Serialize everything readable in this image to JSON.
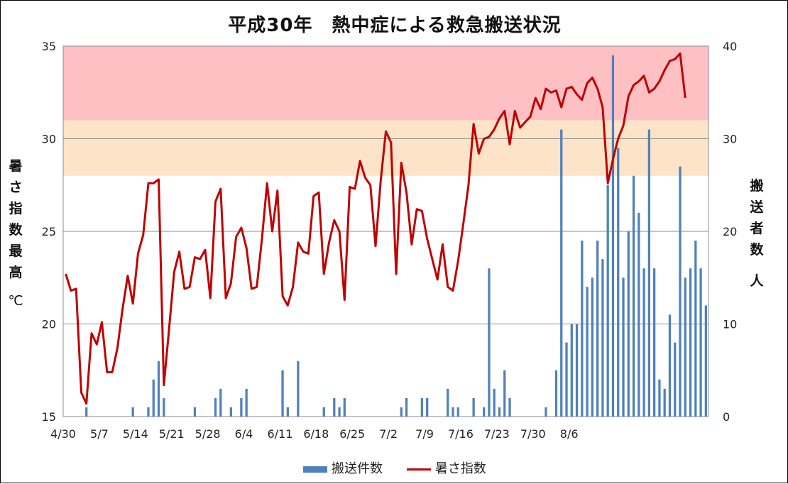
{
  "chart_data": {
    "type": "bar+line",
    "title": "平成30年　熱中症による救急搬送状況",
    "y_left_label": "暑さ指数最高",
    "y_left_unit": "℃",
    "y_right_label": "搬送者数",
    "y_right_unit": "人",
    "y_left_range": [
      15,
      35
    ],
    "y_left_ticks": [
      "15",
      "20",
      "25",
      "30",
      "35"
    ],
    "y_right_range": [
      0,
      40
    ],
    "y_right_ticks": [
      "0",
      "10",
      "20",
      "30",
      "40"
    ],
    "x_tick_labels": [
      "4/30",
      "5/7",
      "5/14",
      "5/21",
      "5/28",
      "6/4",
      "6/11",
      "6/18",
      "6/25",
      "7/2",
      "7/9",
      "7/16",
      "7/23",
      "7/30",
      "8/6"
    ],
    "bands": [
      {
        "from": 31,
        "to": 35,
        "color": "#ffc0c4"
      },
      {
        "from": 28,
        "to": 31,
        "color": "#fde4c8"
      }
    ],
    "grid": true,
    "legend_position": "bottom",
    "series": [
      {
        "name": "搬送件数",
        "type": "bar",
        "axis": "right",
        "color": "#4f81bd",
        "values": [
          0,
          0,
          0,
          0,
          1,
          0,
          0,
          0,
          0,
          0,
          0,
          0,
          0,
          1,
          0,
          0,
          1,
          4,
          6,
          2,
          0,
          0,
          0,
          0,
          0,
          1,
          0,
          0,
          0,
          2,
          3,
          0,
          1,
          0,
          2,
          3,
          0,
          0,
          0,
          0,
          0,
          0,
          5,
          1,
          0,
          6,
          0,
          0,
          0,
          0,
          1,
          0,
          2,
          1,
          2,
          0,
          0,
          0,
          0,
          0,
          0,
          0,
          0,
          0,
          0,
          1,
          2,
          0,
          0,
          2,
          2,
          0,
          0,
          0,
          3,
          1,
          1,
          0,
          0,
          2,
          0,
          1,
          16,
          3,
          1,
          5,
          2,
          0,
          0,
          0,
          0,
          0,
          0,
          1,
          0,
          5,
          31,
          8,
          10,
          10,
          19,
          14,
          15,
          19,
          17,
          25,
          39,
          29,
          15,
          20,
          26,
          22,
          16,
          31,
          16,
          4,
          3,
          11,
          8,
          27,
          15,
          16,
          19,
          16,
          12
        ]
      },
      {
        "name": "暑さ指数",
        "type": "line",
        "axis": "left",
        "color": "#c00000",
        "values": [
          22.7,
          21.8,
          21.9,
          16.3,
          15.7,
          19.5,
          18.9,
          20.1,
          17.4,
          17.4,
          18.7,
          20.8,
          22.6,
          21.1,
          23.8,
          24.8,
          27.6,
          27.6,
          27.8,
          16.7,
          19.7,
          22.8,
          23.9,
          21.9,
          22.0,
          23.6,
          23.5,
          24.0,
          21.4,
          26.6,
          27.3,
          21.4,
          22.2,
          24.7,
          25.2,
          24.1,
          21.9,
          22.0,
          24.6,
          27.6,
          25.0,
          27.2,
          21.5,
          21.0,
          22.0,
          24.4,
          23.9,
          23.8,
          26.9,
          27.1,
          22.7,
          24.4,
          25.6,
          25.0,
          21.3,
          27.4,
          27.3,
          28.8,
          27.9,
          27.5,
          24.2,
          27.7,
          30.4,
          29.8,
          22.7,
          28.7,
          27.1,
          24.3,
          26.2,
          26.1,
          24.6,
          23.5,
          22.4,
          24.3,
          22.0,
          21.8,
          23.4,
          25.4,
          27.5,
          30.8,
          29.2,
          30.0,
          30.1,
          30.5,
          31.1,
          31.5,
          29.7,
          31.5,
          30.6,
          30.9,
          31.2,
          32.2,
          31.6,
          32.7,
          32.5,
          32.6,
          31.7,
          32.7,
          32.8,
          32.4,
          32.1,
          33.0,
          33.3,
          32.7,
          31.7,
          27.6,
          28.9,
          30.0,
          30.7,
          32.3,
          32.9,
          33.1,
          33.4,
          32.5,
          32.7,
          33.1,
          33.7,
          34.2,
          34.3,
          34.6,
          32.2
        ]
      }
    ]
  },
  "legend": {
    "bar_label": "搬送件数",
    "line_label": "暑さ指数"
  }
}
